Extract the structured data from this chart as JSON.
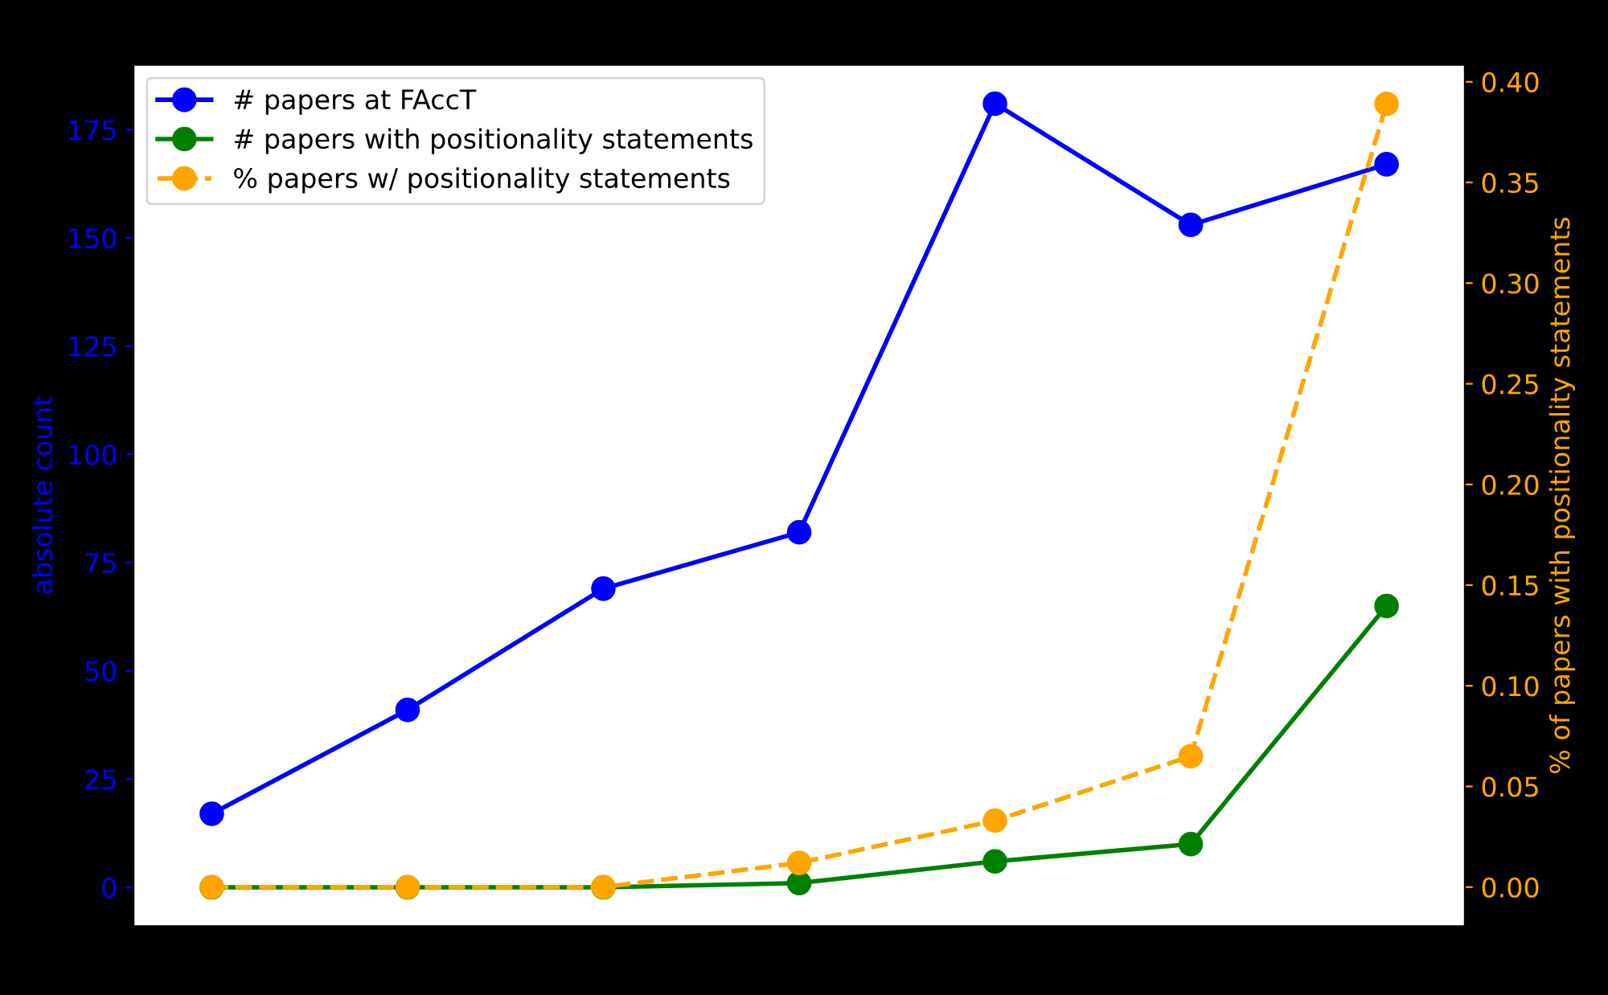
{
  "chart_data": {
    "type": "line",
    "categories": [
      null,
      null,
      null,
      null,
      null,
      null,
      null
    ],
    "ylabel": "absolute count",
    "y2label": "% of papers with positionality statements",
    "ylim": [
      -9,
      190
    ],
    "yticks": [
      0,
      25,
      50,
      75,
      100,
      125,
      150,
      175
    ],
    "y2lim": [
      -0.0195,
      0.4085
    ],
    "y2ticks": [
      {
        "value": 0,
        "label": "0.00"
      },
      {
        "value": 0.05,
        "label": "0.05"
      },
      {
        "value": 0.1,
        "label": "0.10"
      },
      {
        "value": 0.15,
        "label": "0.15"
      },
      {
        "value": 0.2,
        "label": "0.20"
      },
      {
        "value": 0.25,
        "label": "0.25"
      },
      {
        "value": 0.3,
        "label": "0.30"
      },
      {
        "value": 0.35,
        "label": "0.35"
      },
      {
        "value": 0.4,
        "label": "0.40"
      }
    ],
    "marker": "circle",
    "legend": "top left",
    "grid": false,
    "series": [
      {
        "name": "# papers at FAccT",
        "color": "#0000ff",
        "line_style": "solid",
        "values": [
          17,
          41,
          69,
          82,
          181,
          153,
          167
        ]
      },
      {
        "name": "# papers with positionality statements",
        "color": "#008000",
        "line_style": "solid",
        "values": [
          0,
          0,
          0,
          1,
          6,
          10,
          65
        ]
      },
      {
        "name": "% papers w/ positionality statements",
        "color": "#ffa500",
        "line_style": "dashed",
        "axis": "y2",
        "values": [
          0,
          0,
          0,
          0.012,
          0.033,
          0.065,
          0.389
        ]
      }
    ]
  }
}
